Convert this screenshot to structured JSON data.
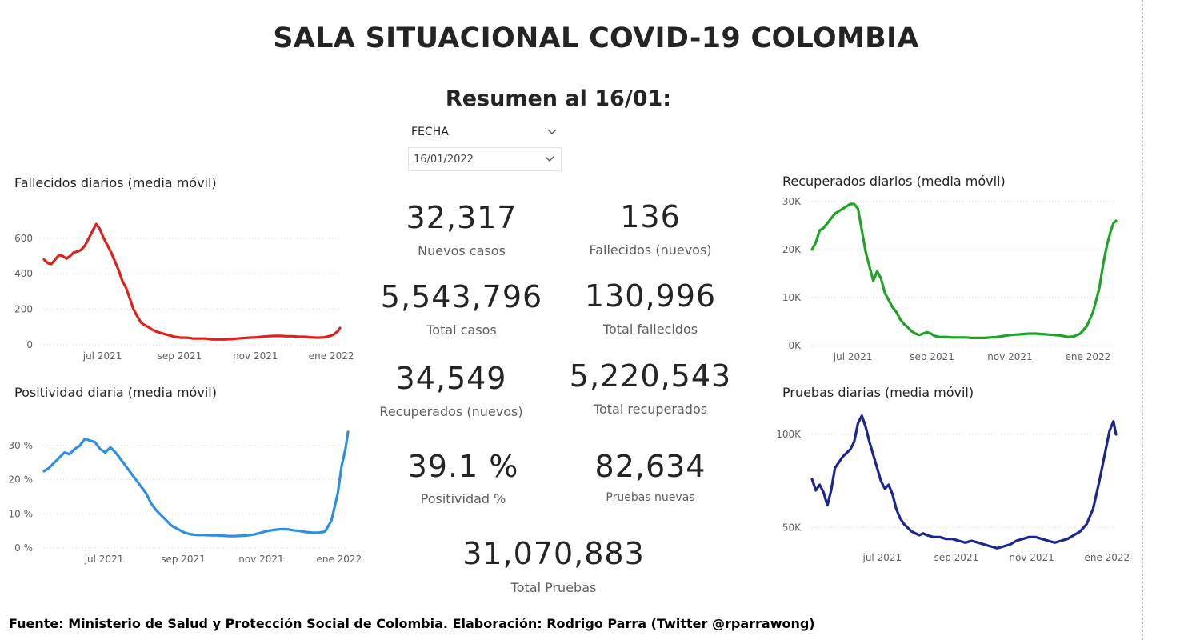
{
  "header": {
    "title": "SALA SITUACIONAL COVID-19 COLOMBIA",
    "subtitle": "Resumen al 16/01:"
  },
  "slicer": {
    "label": "FECHA",
    "value": "16/01/2022"
  },
  "kpis": [
    {
      "id": "nuevos-casos",
      "value": "32,317",
      "label": "Nuevos casos"
    },
    {
      "id": "fallecidos-nuevos",
      "value": "136",
      "label": "Fallecidos (nuevos)"
    },
    {
      "id": "total-casos",
      "value": "5,543,796",
      "label": "Total casos"
    },
    {
      "id": "total-fallecidos",
      "value": "130,996",
      "label": "Total fallecidos"
    },
    {
      "id": "recuperados-nuevos",
      "value": "34,549",
      "label": "Recuperados (nuevos)"
    },
    {
      "id": "total-recuperados",
      "value": "5,220,543",
      "label": "Total recuperados"
    },
    {
      "id": "positividad",
      "value": "39.1 %",
      "label": "Positividad %"
    },
    {
      "id": "pruebas-nuevas",
      "value": "82,634",
      "label": "Pruebas nuevas"
    },
    {
      "id": "total-pruebas",
      "value": "31,070,883",
      "label": "Total Pruebas"
    }
  ],
  "footer": "Fuente: Ministerio de Salud y Protección Social de Colombia. Elaboración: Rodrigo Parra (Twitter @rparrawong)",
  "chart_data": [
    {
      "id": "fallecidos",
      "type": "line",
      "title": "Fallecidos diarios (media móvil)",
      "color": "#e0201b",
      "ylim": [
        0,
        680
      ],
      "yticks": [
        0,
        200,
        400,
        600
      ],
      "ytick_labels": [
        "0",
        "200",
        "400",
        "600"
      ],
      "xlim": [
        0,
        238
      ],
      "xticks": [
        {
          "x": 47,
          "label": "jul 2021"
        },
        {
          "x": 109,
          "label": "sep 2021"
        },
        {
          "x": 170,
          "label": "nov 2021"
        },
        {
          "x": 231,
          "label": "ene 2022"
        }
      ],
      "grid": true,
      "x": [
        0,
        3,
        6,
        9,
        12,
        15,
        18,
        21,
        24,
        27,
        30,
        33,
        36,
        39,
        42,
        45,
        48,
        51,
        54,
        57,
        60,
        63,
        66,
        69,
        72,
        75,
        78,
        81,
        84,
        87,
        90,
        95,
        100,
        105,
        110,
        115,
        120,
        125,
        130,
        135,
        140,
        145,
        150,
        155,
        160,
        165,
        170,
        175,
        180,
        185,
        190,
        195,
        200,
        205,
        210,
        215,
        220,
        225,
        230,
        233,
        236,
        238
      ],
      "values": [
        480,
        460,
        455,
        480,
        505,
        500,
        485,
        500,
        520,
        525,
        535,
        560,
        600,
        640,
        680,
        650,
        600,
        560,
        520,
        470,
        420,
        360,
        320,
        260,
        200,
        160,
        125,
        110,
        100,
        85,
        75,
        65,
        55,
        45,
        40,
        40,
        35,
        35,
        35,
        30,
        30,
        30,
        32,
        35,
        38,
        40,
        42,
        45,
        48,
        50,
        50,
        48,
        48,
        45,
        45,
        42,
        40,
        42,
        50,
        58,
        75,
        95
      ]
    },
    {
      "id": "positividad",
      "type": "line",
      "title": "Positividad diaria (media móvil)",
      "color": "#2c8fe5",
      "ylim": [
        0,
        34
      ],
      "yticks": [
        0,
        10,
        20,
        30
      ],
      "ytick_labels": [
        "0 %",
        "10 %",
        "20 %",
        "30 %"
      ],
      "xlim": [
        0,
        238
      ],
      "xticks": [
        {
          "x": 47,
          "label": "jul 2021"
        },
        {
          "x": 109,
          "label": "sep 2021"
        },
        {
          "x": 170,
          "label": "nov 2021"
        },
        {
          "x": 231,
          "label": "ene 2022"
        }
      ],
      "grid": true,
      "x": [
        0,
        4,
        8,
        12,
        16,
        20,
        24,
        28,
        32,
        36,
        40,
        44,
        48,
        52,
        56,
        60,
        64,
        68,
        72,
        76,
        80,
        84,
        88,
        92,
        96,
        100,
        105,
        110,
        115,
        120,
        125,
        130,
        135,
        140,
        145,
        150,
        155,
        160,
        165,
        170,
        175,
        180,
        185,
        190,
        195,
        200,
        205,
        210,
        215,
        220,
        225,
        230,
        233,
        236,
        238
      ],
      "values": [
        22.5,
        23.5,
        25,
        26.5,
        28,
        27.5,
        29,
        30,
        32,
        31.5,
        31,
        29,
        28,
        29.5,
        28,
        26,
        24,
        22,
        20,
        18,
        16,
        13,
        11,
        9.5,
        8,
        6.5,
        5.5,
        4.5,
        4,
        3.8,
        3.8,
        3.7,
        3.7,
        3.6,
        3.5,
        3.5,
        3.6,
        3.7,
        4,
        4.5,
        5,
        5.3,
        5.5,
        5.5,
        5.2,
        5,
        4.7,
        4.5,
        4.5,
        4.8,
        8,
        16,
        24,
        29,
        34
      ]
    },
    {
      "id": "recuperados",
      "type": "line",
      "title": "Recuperados diarios (media móvil)",
      "color": "#1ea424",
      "ylim": [
        0,
        30000
      ],
      "yticks": [
        0,
        10000,
        20000,
        30000
      ],
      "ytick_labels": [
        "0K",
        "10K",
        "20K",
        "30K"
      ],
      "xlim": [
        0,
        238
      ],
      "xticks": [
        {
          "x": 32,
          "label": "jul 2021"
        },
        {
          "x": 94,
          "label": "sep 2021"
        },
        {
          "x": 155,
          "label": "nov 2021"
        },
        {
          "x": 216,
          "label": "ene 2022"
        }
      ],
      "grid": true,
      "x": [
        0,
        3,
        6,
        9,
        12,
        15,
        18,
        21,
        24,
        27,
        30,
        33,
        36,
        39,
        42,
        45,
        48,
        51,
        54,
        57,
        60,
        63,
        66,
        69,
        72,
        75,
        78,
        81,
        84,
        87,
        90,
        93,
        96,
        100,
        105,
        110,
        115,
        120,
        125,
        130,
        135,
        140,
        145,
        150,
        155,
        160,
        165,
        170,
        175,
        180,
        185,
        190,
        195,
        200,
        205,
        210,
        215,
        220,
        225,
        228,
        231,
        234,
        236,
        238
      ],
      "values": [
        20000,
        21500,
        24000,
        24500,
        25500,
        26500,
        27500,
        28000,
        28500,
        29000,
        29500,
        29500,
        28500,
        24000,
        19500,
        16500,
        13500,
        15500,
        14000,
        11000,
        9500,
        8000,
        7000,
        5500,
        4500,
        3800,
        3000,
        2500,
        2200,
        2500,
        2800,
        2500,
        2000,
        1800,
        1800,
        1700,
        1700,
        1700,
        1600,
        1600,
        1600,
        1700,
        1800,
        2000,
        2200,
        2300,
        2400,
        2500,
        2500,
        2400,
        2300,
        2200,
        2100,
        1800,
        1900,
        2500,
        4000,
        7000,
        12000,
        17000,
        21000,
        24000,
        25500,
        26000
      ]
    },
    {
      "id": "pruebas",
      "type": "line",
      "title": "Pruebas diarias (media móvil)",
      "color": "#1b2690",
      "ylim": [
        40000,
        112000
      ],
      "yticks": [
        50000,
        100000
      ],
      "ytick_labels": [
        "50K",
        "100K"
      ],
      "xlim": [
        0,
        238
      ],
      "xticks": [
        {
          "x": 55,
          "label": "jul 2021"
        },
        {
          "x": 113,
          "label": "sep 2021"
        },
        {
          "x": 172,
          "label": "nov 2021"
        },
        {
          "x": 231,
          "label": "ene 2022"
        }
      ],
      "grid": true,
      "x": [
        0,
        3,
        6,
        9,
        12,
        15,
        18,
        21,
        24,
        27,
        30,
        33,
        36,
        39,
        42,
        45,
        48,
        51,
        54,
        57,
        60,
        63,
        66,
        69,
        72,
        75,
        78,
        81,
        84,
        87,
        90,
        95,
        100,
        105,
        110,
        115,
        120,
        125,
        130,
        135,
        140,
        145,
        150,
        155,
        160,
        165,
        170,
        175,
        180,
        185,
        190,
        195,
        200,
        205,
        210,
        215,
        220,
        225,
        230,
        233,
        236,
        238
      ],
      "values": [
        76000,
        70000,
        73000,
        69000,
        62000,
        70000,
        82000,
        85000,
        88000,
        90000,
        92000,
        96000,
        106000,
        110000,
        104000,
        96000,
        89000,
        82000,
        75000,
        71000,
        73000,
        68000,
        60000,
        55000,
        52000,
        50000,
        48000,
        47000,
        46000,
        47000,
        46000,
        45000,
        45000,
        44000,
        44000,
        43000,
        42000,
        43000,
        42000,
        41000,
        40000,
        39000,
        40000,
        41000,
        43000,
        44000,
        45000,
        45000,
        44000,
        43000,
        42000,
        43000,
        44000,
        46000,
        48000,
        52000,
        60000,
        75000,
        92000,
        102000,
        107000,
        100000
      ]
    }
  ]
}
